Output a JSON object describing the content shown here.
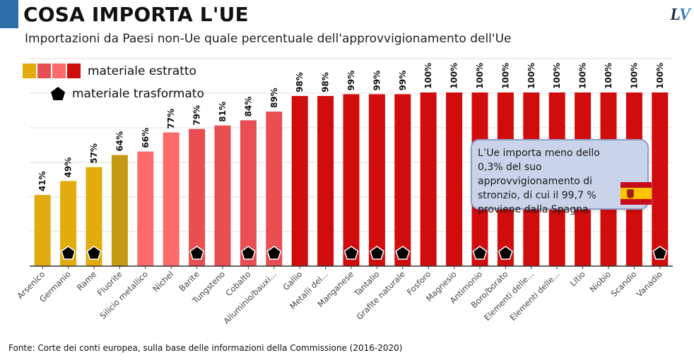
{
  "header": {
    "title": "COSA IMPORTA L'UE",
    "subtitle": "Importazioni da Paesi non-Ue quale percentuale dell'approvvigionamento dell'Ue",
    "logo": "LV"
  },
  "legend": {
    "extracted_label": "materiale estratto",
    "processed_label": "materiale trasformato"
  },
  "colors": {
    "gold": "#e2ac0e",
    "olive_gold": "#c49a14",
    "salmon": "#ff6b6b",
    "coral": "#e84e52",
    "red": "#d10c0c",
    "grid": "#e0e0e0",
    "axis": "#333333",
    "marker": "#000000"
  },
  "callout": {
    "text": "L’Ue importa meno dello 0,3% del suo approvvigionamento di stronzio, di cui il 99,7 % proviene dalla Spagna"
  },
  "footer": {
    "source": "Fonte: Corte dei conti europea, sulla base delle informazioni della Commissione (2016-2020)"
  },
  "chart_data": {
    "type": "bar",
    "title": "COSA IMPORTA L'UE",
    "subtitle": "Importazioni da Paesi non-Ue quale percentuale dell'approvvigionamento dell'Ue",
    "ylim": [
      0,
      100
    ],
    "grid": true,
    "legend_position": "top-left",
    "categories": [
      "Arsenico",
      "Germanio",
      "Rame",
      "Fluorite",
      "Silicio metallico",
      "Nichel",
      "Barite",
      "Tungsteno",
      "Cobalto",
      "Alluminio/bauxi...",
      "Gallio",
      "Metalli del...",
      "Manganese",
      "Tantalio",
      "Grafite naturale",
      "Fosforo",
      "Magnesio",
      "Antimonio",
      "Boro/borato",
      "Elementi delle...",
      "Elementi delle...",
      "Litio",
      "Niobio",
      "Scandio",
      "Vanadio"
    ],
    "values": [
      41,
      49,
      57,
      64,
      66,
      77,
      79,
      81,
      84,
      89,
      98,
      98,
      99,
      99,
      99,
      100,
      100,
      100,
      100,
      100,
      100,
      100,
      100,
      100,
      100
    ],
    "data_labels": [
      "41%",
      "49%",
      "57%",
      "64%",
      "66%",
      "77%",
      "79%",
      "81%",
      "84%",
      "89%",
      "98%",
      "98%",
      "99%",
      "99%",
      "99%",
      "100%",
      "100%",
      "100%",
      "100%",
      "100%",
      "100%",
      "100%",
      "100%",
      "100%",
      "100%"
    ],
    "bar_colors": [
      "#e2ac0e",
      "#e2ac0e",
      "#e2ac0e",
      "#c49a14",
      "#ff6b6b",
      "#ff6b6b",
      "#e84e52",
      "#e84e52",
      "#e84e52",
      "#e84e52",
      "#d10c0c",
      "#d10c0c",
      "#d10c0c",
      "#d10c0c",
      "#d10c0c",
      "#d10c0c",
      "#d10c0c",
      "#d10c0c",
      "#d10c0c",
      "#d10c0c",
      "#d10c0c",
      "#d10c0c",
      "#d10c0c",
      "#d10c0c",
      "#d10c0c"
    ],
    "processed": [
      false,
      true,
      true,
      false,
      false,
      false,
      true,
      false,
      true,
      true,
      false,
      false,
      true,
      true,
      true,
      false,
      false,
      true,
      true,
      false,
      false,
      false,
      false,
      false,
      true
    ]
  }
}
